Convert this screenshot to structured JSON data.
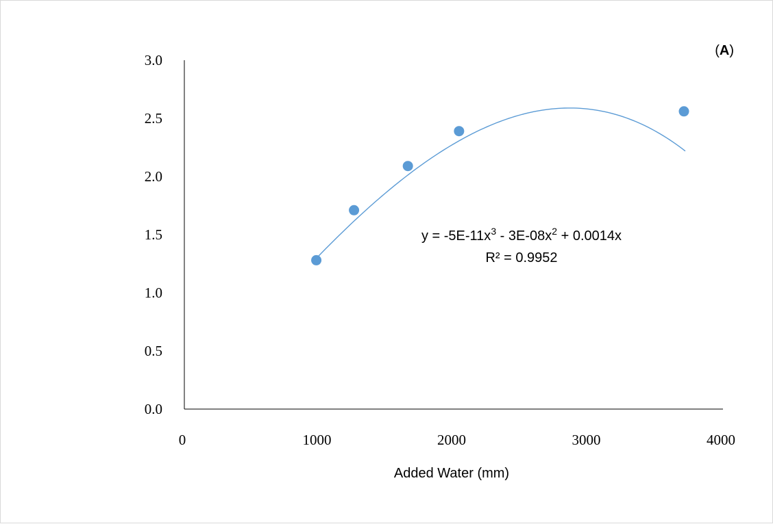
{
  "chart_data": {
    "type": "scatter",
    "panel_label_open": "(",
    "panel_label_letter": "A",
    "panel_label_close": ")",
    "xlabel": "Added Water (mm)",
    "ylabel": "",
    "xlim": [
      0,
      4000
    ],
    "ylim": [
      0,
      3
    ],
    "x_ticks": [
      "0",
      "1000",
      "2000",
      "3000",
      "4000"
    ],
    "y_ticks": [
      "0.0",
      "0.5",
      "1.0",
      "1.5",
      "2.0",
      "2.5",
      "3.0"
    ],
    "grid": false,
    "points": [
      {
        "x": 980,
        "y": 1.28
      },
      {
        "x": 1260,
        "y": 1.71
      },
      {
        "x": 1660,
        "y": 2.09
      },
      {
        "x": 2040,
        "y": 2.39
      },
      {
        "x": 3710,
        "y": 2.56
      }
    ],
    "trendline": {
      "kind": "polynomial",
      "coefficients": {
        "c3": -5e-11,
        "c2": -3e-08,
        "c1": 0.0014,
        "c0": 0
      },
      "x_range": [
        960,
        3720
      ],
      "equation_base": "y = -5E-11x",
      "equation_exp1": "3",
      "equation_mid": " - 3E-08x",
      "equation_exp2": "2",
      "equation_tail": " + 0.0014x",
      "r_squared_label": "R² = 0.9952"
    },
    "colors": {
      "marker": "#5b9bd5",
      "trendline": "#5b9bd5",
      "axis": "#000000"
    }
  }
}
